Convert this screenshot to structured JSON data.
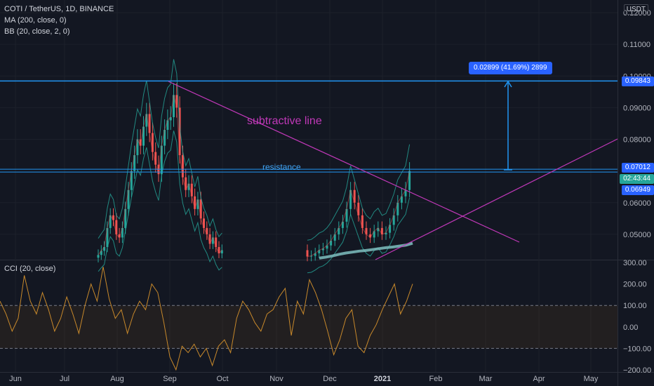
{
  "header": {
    "symbol_line": "COTI / TetherUS, 1D, BINANCE",
    "indicators": [
      "MA (200, close, 0)",
      "BB (20, close, 2, 0)"
    ],
    "currency": "USDT"
  },
  "cci_label": "CCI (20, close)",
  "chart_data": [
    {
      "type": "candlestick",
      "title": "COTI / TetherUS, 1D, BINANCE",
      "ylim": [
        0.042,
        0.124
      ],
      "y_ticks": [
        "0.12000",
        "0.11000",
        "0.10000",
        "0.09000",
        "0.08000",
        "0.06000",
        "0.05000"
      ],
      "x_ticks": [
        "Jun",
        "Jul",
        "Aug",
        "Sep",
        "Oct",
        "Nov",
        "Dec",
        "2021",
        "Feb",
        "Mar",
        "Apr",
        "May"
      ],
      "closes": [
        0.0435,
        0.0448,
        0.046,
        0.052,
        0.056,
        0.0545,
        0.05,
        0.049,
        0.052,
        0.058,
        0.064,
        0.07,
        0.075,
        0.08,
        0.078,
        0.084,
        0.088,
        0.082,
        0.076,
        0.072,
        0.069,
        0.078,
        0.083,
        0.086,
        0.087,
        0.094,
        0.09,
        0.075,
        0.068,
        0.064,
        0.066,
        0.062,
        0.058,
        0.061,
        0.055,
        0.052,
        0.05,
        0.047,
        0.049,
        0.046,
        0.044,
        0.045,
        0.043,
        0.0432,
        0.044,
        0.045,
        0.0455,
        0.0465,
        0.048,
        0.05,
        0.052,
        0.054,
        0.058,
        0.064,
        0.06,
        0.056,
        0.052,
        0.05,
        0.049,
        0.051,
        0.052,
        0.05,
        0.0505,
        0.053,
        0.056,
        0.06,
        0.062,
        0.064,
        0.07
      ],
      "ma200": [
        0.0425,
        0.0428,
        0.0432,
        0.0437,
        0.0441,
        0.0444,
        0.0447,
        0.0449,
        0.0452,
        0.0455,
        0.0458,
        0.046,
        0.0463,
        0.0466,
        0.0472
      ],
      "overlays": {
        "resistance_label": "resistance",
        "line_label": "subtractive line",
        "measure_label": "0.02899 (41.69%) 2899"
      },
      "price_labels": [
        {
          "value": "0.09843",
          "color": "#2962ff"
        },
        {
          "value": "0.07012",
          "color": "#2962ff"
        },
        {
          "value": "02:43:44",
          "color": "#26a69a"
        },
        {
          "value": "0.06949",
          "color": "#2962ff"
        }
      ]
    },
    {
      "type": "line",
      "title": "CCI (20, close)",
      "ylim": [
        -210,
        310
      ],
      "y_ticks": [
        "300.00",
        "200.00",
        "100.00",
        "0.00",
        "−100.00",
        "−200.00"
      ],
      "bands": [
        100,
        -100
      ],
      "color": "#c8892b",
      "values": [
        120,
        60,
        -20,
        40,
        240,
        120,
        60,
        160,
        80,
        -20,
        40,
        140,
        60,
        -30,
        100,
        200,
        120,
        280,
        130,
        40,
        80,
        -30,
        60,
        120,
        80,
        200,
        160,
        20,
        -140,
        -200,
        -90,
        -120,
        -80,
        -140,
        -100,
        -180,
        -90,
        -60,
        -120,
        40,
        120,
        80,
        20,
        -20,
        60,
        80,
        140,
        180,
        -40,
        120,
        60,
        220,
        160,
        80,
        -20,
        -130,
        -60,
        40,
        80,
        -90,
        -120,
        -40,
        10,
        80,
        140,
        200,
        60,
        120,
        200
      ]
    }
  ]
}
